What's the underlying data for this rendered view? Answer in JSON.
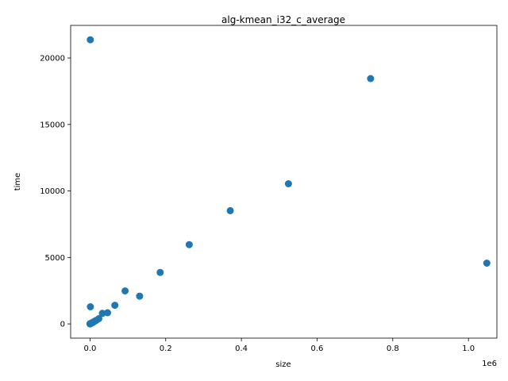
{
  "chart_data": {
    "type": "scatter",
    "title": "alg-kmean_i32_c_average",
    "xlabel": "size",
    "ylabel": "time",
    "x_offset_label": "1e6",
    "xlim": [
      -51200,
      1075200
    ],
    "ylim": [
      -1070,
      22450
    ],
    "x_ticks": [
      0,
      0.2,
      0.4,
      0.6,
      0.8,
      1.0
    ],
    "x_tick_labels": [
      "0.0",
      "0.2",
      "0.4",
      "0.6",
      "0.8",
      "1.0"
    ],
    "x_tick_scale": 1000000,
    "y_ticks": [
      0,
      5000,
      10000,
      15000,
      20000
    ],
    "y_tick_labels": [
      "0",
      "5000",
      "10000",
      "15000",
      "20000"
    ],
    "grid": false,
    "marker_color": "#1f77b4",
    "points": [
      {
        "x": 64,
        "y": 3
      },
      {
        "x": 128,
        "y": 5
      },
      {
        "x": 256,
        "y": 10
      },
      {
        "x": 512,
        "y": 20
      },
      {
        "x": 724,
        "y": 21370
      },
      {
        "x": 1024,
        "y": 1290
      },
      {
        "x": 2048,
        "y": 40
      },
      {
        "x": 2896,
        "y": 55
      },
      {
        "x": 4096,
        "y": 70
      },
      {
        "x": 5792,
        "y": 90
      },
      {
        "x": 8192,
        "y": 130
      },
      {
        "x": 11585,
        "y": 190
      },
      {
        "x": 16384,
        "y": 270
      },
      {
        "x": 23170,
        "y": 390
      },
      {
        "x": 32768,
        "y": 790
      },
      {
        "x": 46341,
        "y": 840
      },
      {
        "x": 65536,
        "y": 1400
      },
      {
        "x": 92682,
        "y": 2480
      },
      {
        "x": 131072,
        "y": 2090
      },
      {
        "x": 185364,
        "y": 3870
      },
      {
        "x": 262144,
        "y": 5960
      },
      {
        "x": 370728,
        "y": 8520
      },
      {
        "x": 524288,
        "y": 10540
      },
      {
        "x": 741455,
        "y": 18450
      },
      {
        "x": 1048576,
        "y": 4570
      }
    ]
  }
}
